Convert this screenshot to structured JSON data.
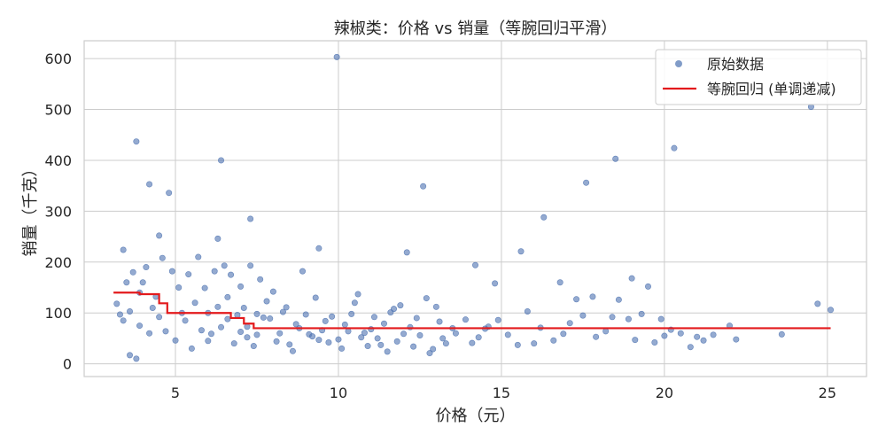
{
  "chart_data": {
    "type": "scatter",
    "title": "辣椒类：价格 vs 销量（等腕回归平滑）",
    "xlabel": "价格（元）",
    "ylabel": "销量（千克）",
    "xlim": [
      2.2,
      26.2
    ],
    "ylim": [
      -25,
      635
    ],
    "xticks": [
      5,
      10,
      15,
      20,
      25
    ],
    "yticks": [
      0,
      100,
      200,
      300,
      400,
      500,
      600
    ],
    "grid": true,
    "legend_position": "top-right",
    "colors": {
      "scatter": "#4c72b0",
      "line": "#e31a1c"
    },
    "series": [
      {
        "name": "原始数据",
        "kind": "scatter",
        "points": [
          [
            9.95,
            603
          ],
          [
            24.5,
            505
          ],
          [
            3.8,
            437
          ],
          [
            6.4,
            400
          ],
          [
            20.3,
            424
          ],
          [
            18.5,
            403
          ],
          [
            4.2,
            353
          ],
          [
            4.8,
            336
          ],
          [
            12.6,
            349
          ],
          [
            17.6,
            356
          ],
          [
            7.3,
            285
          ],
          [
            16.3,
            288
          ],
          [
            9.4,
            227
          ],
          [
            4.5,
            252
          ],
          [
            6.3,
            246
          ],
          [
            3.4,
            224
          ],
          [
            12.1,
            219
          ],
          [
            15.6,
            221
          ],
          [
            14.2,
            194
          ],
          [
            19.5,
            152
          ],
          [
            19.0,
            168
          ],
          [
            16.8,
            160
          ],
          [
            14.8,
            158
          ],
          [
            24.7,
            118
          ],
          [
            25.1,
            106
          ],
          [
            23.6,
            58
          ],
          [
            22.0,
            75
          ],
          [
            22.2,
            48
          ],
          [
            21.2,
            46
          ],
          [
            20.8,
            33
          ],
          [
            20.0,
            55
          ],
          [
            20.2,
            67
          ],
          [
            19.9,
            88
          ],
          [
            19.3,
            98
          ],
          [
            18.9,
            88
          ],
          [
            18.4,
            92
          ],
          [
            18.6,
            126
          ],
          [
            17.8,
            132
          ],
          [
            17.3,
            127
          ],
          [
            17.5,
            95
          ],
          [
            16.9,
            59
          ],
          [
            16.6,
            46
          ],
          [
            16.0,
            40
          ],
          [
            15.5,
            37
          ],
          [
            15.2,
            57
          ],
          [
            14.9,
            86
          ],
          [
            14.5,
            69
          ],
          [
            14.1,
            41
          ],
          [
            13.9,
            87
          ],
          [
            13.5,
            70
          ],
          [
            13.2,
            50
          ],
          [
            12.9,
            29
          ],
          [
            13.0,
            112
          ],
          [
            12.4,
            90
          ],
          [
            12.2,
            72
          ],
          [
            12.7,
            129
          ],
          [
            11.9,
            115
          ],
          [
            12.0,
            59
          ],
          [
            11.6,
            101
          ],
          [
            11.8,
            44
          ],
          [
            3.2,
            118
          ],
          [
            3.3,
            97
          ],
          [
            3.5,
            160
          ],
          [
            3.6,
            103
          ],
          [
            3.7,
            180
          ],
          [
            3.9,
            140
          ],
          [
            3.8,
            10
          ],
          [
            3.6,
            17
          ],
          [
            4.0,
            160
          ],
          [
            4.1,
            190
          ],
          [
            4.3,
            110
          ],
          [
            4.4,
            132
          ],
          [
            4.6,
            208
          ],
          [
            4.7,
            64
          ],
          [
            4.9,
            182
          ],
          [
            5.0,
            46
          ],
          [
            5.2,
            100
          ],
          [
            5.4,
            176
          ],
          [
            5.5,
            30
          ],
          [
            5.7,
            210
          ],
          [
            5.9,
            149
          ],
          [
            6.0,
            100
          ],
          [
            6.1,
            59
          ],
          [
            6.2,
            182
          ],
          [
            6.5,
            193
          ],
          [
            6.6,
            131
          ],
          [
            6.7,
            175
          ],
          [
            6.8,
            40
          ],
          [
            6.9,
            96
          ],
          [
            7.0,
            152
          ],
          [
            7.1,
            110
          ],
          [
            7.2,
            73
          ],
          [
            7.3,
            193
          ],
          [
            7.4,
            35
          ],
          [
            7.5,
            57
          ],
          [
            7.6,
            166
          ],
          [
            7.8,
            123
          ],
          [
            7.9,
            89
          ],
          [
            8.0,
            142
          ],
          [
            8.2,
            60
          ],
          [
            8.4,
            111
          ],
          [
            8.6,
            25
          ],
          [
            8.7,
            78
          ],
          [
            8.9,
            182
          ],
          [
            9.0,
            97
          ],
          [
            9.2,
            54
          ],
          [
            9.3,
            130
          ],
          [
            9.5,
            66
          ],
          [
            9.7,
            42
          ],
          [
            9.8,
            93
          ],
          [
            10.1,
            30
          ],
          [
            10.2,
            77
          ],
          [
            10.4,
            98
          ],
          [
            10.5,
            120
          ],
          [
            10.6,
            137
          ],
          [
            10.8,
            61
          ],
          [
            10.9,
            35
          ],
          [
            11.1,
            92
          ],
          [
            11.2,
            50
          ],
          [
            11.4,
            79
          ],
          [
            11.5,
            24
          ],
          [
            11.7,
            108
          ],
          [
            12.3,
            34
          ],
          [
            12.5,
            56
          ],
          [
            12.8,
            21
          ],
          [
            13.1,
            83
          ],
          [
            13.3,
            40
          ],
          [
            13.6,
            60
          ],
          [
            14.3,
            52
          ],
          [
            14.6,
            73
          ],
          [
            15.8,
            103
          ],
          [
            16.2,
            71
          ],
          [
            17.1,
            80
          ],
          [
            17.9,
            53
          ],
          [
            18.2,
            64
          ],
          [
            19.1,
            47
          ],
          [
            19.7,
            42
          ],
          [
            20.5,
            60
          ],
          [
            21.0,
            53
          ],
          [
            21.5,
            57
          ],
          [
            3.4,
            85
          ],
          [
            3.9,
            75
          ],
          [
            4.2,
            60
          ],
          [
            4.5,
            92
          ],
          [
            5.1,
            150
          ],
          [
            5.3,
            85
          ],
          [
            5.6,
            120
          ],
          [
            5.8,
            66
          ],
          [
            6.3,
            112
          ],
          [
            6.6,
            88
          ],
          [
            7.0,
            63
          ],
          [
            7.7,
            91
          ],
          [
            8.1,
            44
          ],
          [
            8.3,
            102
          ],
          [
            8.8,
            70
          ],
          [
            9.1,
            58
          ],
          [
            9.6,
            84
          ],
          [
            10.0,
            48
          ],
          [
            10.3,
            64
          ],
          [
            10.7,
            52
          ],
          [
            11.0,
            68
          ],
          [
            11.3,
            37
          ],
          [
            6.0,
            45
          ],
          [
            6.4,
            72
          ],
          [
            7.2,
            52
          ],
          [
            7.5,
            98
          ],
          [
            8.5,
            38
          ],
          [
            9.4,
            47
          ]
        ]
      },
      {
        "name": "等腕回归 (单调递减)",
        "kind": "step-line",
        "points": [
          [
            3.1,
            140
          ],
          [
            3.9,
            140
          ],
          [
            3.9,
            137
          ],
          [
            4.5,
            137
          ],
          [
            4.5,
            119
          ],
          [
            4.75,
            119
          ],
          [
            4.75,
            100
          ],
          [
            6.7,
            100
          ],
          [
            6.7,
            90
          ],
          [
            7.1,
            90
          ],
          [
            7.1,
            79
          ],
          [
            7.4,
            79
          ],
          [
            7.4,
            70
          ],
          [
            25.1,
            70
          ]
        ]
      }
    ]
  }
}
